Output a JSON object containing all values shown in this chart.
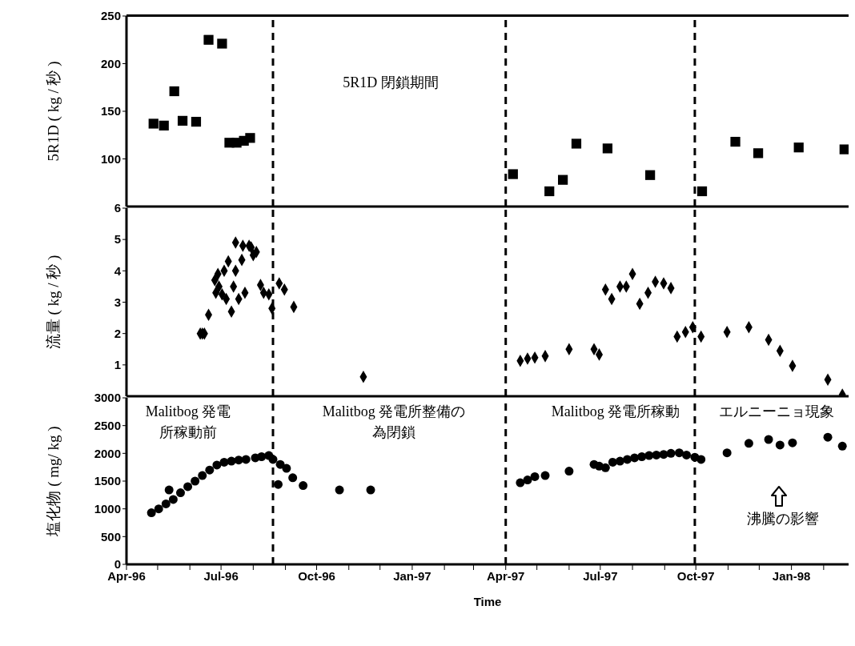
{
  "chart_data": [
    {
      "type": "scatter",
      "ylabel": "5R1D ( kg / 秒 )",
      "marker": "square",
      "tick_labels": "y",
      "xlim": [
        "1996-04-01",
        "1998-02-25"
      ],
      "ylim": [
        50,
        250
      ],
      "yticks": [
        100,
        150,
        200,
        250
      ],
      "annotations": [
        "5R1D 閉鎖期間"
      ],
      "ref_lines": [
        {
          "axis": "x",
          "value": "1996-08-20",
          "color": "#000000",
          "line_style": "dashed"
        },
        {
          "axis": "x",
          "value": "1997-04-01",
          "color": "#000000",
          "line_style": "dashed"
        },
        {
          "axis": "x",
          "value": "1997-09-30",
          "color": "#000000",
          "line_style": "dashed"
        }
      ],
      "series": [
        {
          "color": "#000000",
          "x": [
            "1996-04-27",
            "1996-05-07",
            "1996-05-17",
            "1996-05-25",
            "1996-06-07",
            "1996-06-19",
            "1996-07-02",
            "1996-07-09",
            "1996-07-16",
            "1996-07-23",
            "1996-07-29",
            "1997-04-08",
            "1997-05-13",
            "1997-05-26",
            "1997-06-08",
            "1997-07-08",
            "1997-08-18",
            "1997-10-07",
            "1997-11-08",
            "1997-11-30",
            "1998-01-08",
            "1998-02-21"
          ],
          "values": [
            137,
            135,
            171,
            140,
            139,
            225,
            221,
            117,
            117,
            119,
            122,
            84,
            66,
            78,
            116,
            111,
            83,
            66,
            118,
            106,
            112,
            110
          ]
        }
      ]
    },
    {
      "type": "scatter",
      "ylabel": "流量 ( kg / 秒 )",
      "marker": "diamond",
      "tick_labels": "y",
      "xlim": [
        "1996-04-01",
        "1998-02-25"
      ],
      "ylim": [
        0,
        6
      ],
      "yticks": [
        1,
        2,
        3,
        4,
        5,
        6
      ],
      "ref_lines": [
        {
          "axis": "x",
          "value": "1996-08-20",
          "color": "#000000",
          "line_style": "dashed"
        },
        {
          "axis": "x",
          "value": "1997-04-01",
          "color": "#000000",
          "line_style": "dashed"
        },
        {
          "axis": "x",
          "value": "1997-09-30",
          "color": "#000000",
          "line_style": "dashed"
        }
      ],
      "series": [
        {
          "color": "#000000",
          "x": [
            "1996-06-11",
            "1996-06-13",
            "1996-06-15",
            "1996-06-19",
            "1996-06-25",
            "1996-06-26",
            "1996-06-28",
            "1996-06-29",
            "1996-07-02",
            "1996-07-04",
            "1996-07-06",
            "1996-07-08",
            "1996-07-11",
            "1996-07-13",
            "1996-07-15",
            "1996-07-15",
            "1996-07-18",
            "1996-07-21",
            "1996-07-22",
            "1996-07-24",
            "1996-07-28",
            "1996-07-30",
            "1996-08-01",
            "1996-08-04",
            "1996-08-08",
            "1996-08-11",
            "1996-08-16",
            "1996-08-19",
            "1996-08-26",
            "1996-08-31",
            "1996-09-09",
            "1996-11-15",
            "1997-04-15",
            "1997-04-22",
            "1997-04-29",
            "1997-05-09",
            "1997-06-01",
            "1997-06-25",
            "1997-06-30",
            "1997-07-06",
            "1997-07-12",
            "1997-07-20",
            "1997-07-26",
            "1997-08-01",
            "1997-08-08",
            "1997-08-16",
            "1997-08-23",
            "1997-08-31",
            "1997-09-07",
            "1997-09-13",
            "1997-09-21",
            "1997-09-28",
            "1997-10-06",
            "1997-10-31",
            "1997-11-21",
            "1997-12-10",
            "1997-12-21",
            "1998-01-02",
            "1998-02-05",
            "1998-02-19"
          ],
          "values": [
            2.0,
            2.0,
            2.0,
            2.6,
            3.7,
            3.3,
            3.9,
            3.5,
            3.25,
            4.0,
            3.1,
            4.3,
            2.7,
            3.5,
            4.9,
            4.0,
            3.1,
            4.35,
            4.8,
            3.3,
            4.8,
            4.75,
            4.5,
            4.6,
            3.55,
            3.3,
            3.25,
            2.8,
            3.6,
            3.4,
            2.85,
            0.62,
            1.13,
            1.2,
            1.23,
            1.28,
            1.5,
            1.5,
            1.33,
            3.4,
            3.1,
            3.5,
            3.5,
            3.9,
            2.95,
            3.3,
            3.65,
            3.6,
            3.45,
            1.9,
            2.05,
            2.2,
            1.9,
            2.05,
            2.2,
            1.8,
            1.45,
            0.97,
            0.53,
            0.05
          ]
        }
      ]
    },
    {
      "type": "scatter",
      "ylabel": "塩化物 ( mg/ kg )",
      "xlabel": "Time",
      "marker": "circle",
      "xlim": [
        "1996-04-01",
        "1998-02-25"
      ],
      "ylim": [
        0,
        3000
      ],
      "yticks": [
        0,
        500,
        1000,
        1500,
        2000,
        2500,
        3000
      ],
      "xticks": [
        {
          "value": "1996-04-01",
          "label": "Apr-96"
        },
        {
          "value": "1996-05-01",
          "label": null
        },
        {
          "value": "1996-06-01",
          "label": null
        },
        {
          "value": "1996-07-01",
          "label": "Jul-96"
        },
        {
          "value": "1996-08-01",
          "label": null
        },
        {
          "value": "1996-09-01",
          "label": null
        },
        {
          "value": "1996-10-01",
          "label": "Oct-96"
        },
        {
          "value": "1996-11-01",
          "label": null
        },
        {
          "value": "1996-12-01",
          "label": null
        },
        {
          "value": "1997-01-01",
          "label": "Jan-97"
        },
        {
          "value": "1997-02-01",
          "label": null
        },
        {
          "value": "1997-03-01",
          "label": null
        },
        {
          "value": "1997-04-01",
          "label": "Apr-97"
        },
        {
          "value": "1997-05-01",
          "label": null
        },
        {
          "value": "1997-06-01",
          "label": null
        },
        {
          "value": "1997-07-01",
          "label": "Jul-97"
        },
        {
          "value": "1997-08-01",
          "label": null
        },
        {
          "value": "1997-09-01",
          "label": null
        },
        {
          "value": "1997-10-01",
          "label": "Oct-97"
        },
        {
          "value": "1997-11-01",
          "label": null
        },
        {
          "value": "1997-12-01",
          "label": null
        },
        {
          "value": "1998-01-01",
          "label": "Jan-98"
        },
        {
          "value": "1998-02-01",
          "label": null
        }
      ],
      "annotations": [
        "Malitbog 発電所稼動前",
        "Malitbog 発電所整備の為閉鎖",
        "Malitbog 発電所稼動",
        "エルニーニョ現象",
        "沸騰の影響"
      ],
      "ref_lines": [
        {
          "axis": "x",
          "value": "1996-08-20",
          "color": "#000000",
          "line_style": "dashed"
        },
        {
          "axis": "x",
          "value": "1997-04-01",
          "color": "#000000",
          "line_style": "dashed"
        },
        {
          "axis": "x",
          "value": "1997-09-30",
          "color": "#000000",
          "line_style": "dashed"
        }
      ],
      "series": [
        {
          "color": "#000000",
          "x": [
            "1996-04-25",
            "1996-05-02",
            "1996-05-09",
            "1996-05-12",
            "1996-05-16",
            "1996-05-23",
            "1996-05-30",
            "1996-06-06",
            "1996-06-13",
            "1996-06-20",
            "1996-06-27",
            "1996-07-04",
            "1996-07-11",
            "1996-07-18",
            "1996-07-25",
            "1996-08-03",
            "1996-08-09",
            "1996-08-16",
            "1996-08-20",
            "1996-08-25",
            "1996-08-27",
            "1996-09-02",
            "1996-09-08",
            "1996-09-18",
            "1996-10-23",
            "1996-11-22",
            "1997-04-15",
            "1997-04-22",
            "1997-04-29",
            "1997-05-09",
            "1997-06-01",
            "1997-06-25",
            "1997-06-30",
            "1997-07-06",
            "1997-07-13",
            "1997-07-20",
            "1997-07-27",
            "1997-08-03",
            "1997-08-10",
            "1997-08-17",
            "1997-08-24",
            "1997-08-31",
            "1997-09-07",
            "1997-09-15",
            "1997-09-22",
            "1997-09-30",
            "1997-10-06",
            "1997-10-31",
            "1997-11-21",
            "1997-12-10",
            "1997-12-21",
            "1998-01-02",
            "1998-02-05",
            "1998-02-19"
          ],
          "values": [
            930,
            1000,
            1090,
            1340,
            1170,
            1290,
            1400,
            1500,
            1600,
            1700,
            1790,
            1840,
            1860,
            1880,
            1890,
            1920,
            1940,
            1960,
            1890,
            1440,
            1800,
            1730,
            1560,
            1420,
            1340,
            1340,
            1470,
            1520,
            1580,
            1600,
            1680,
            1800,
            1770,
            1740,
            1840,
            1860,
            1890,
            1920,
            1940,
            1960,
            1970,
            1980,
            2000,
            2010,
            1970,
            1930,
            1890,
            2010,
            2180,
            2250,
            2150,
            2190,
            2290,
            2130
          ]
        }
      ]
    }
  ]
}
